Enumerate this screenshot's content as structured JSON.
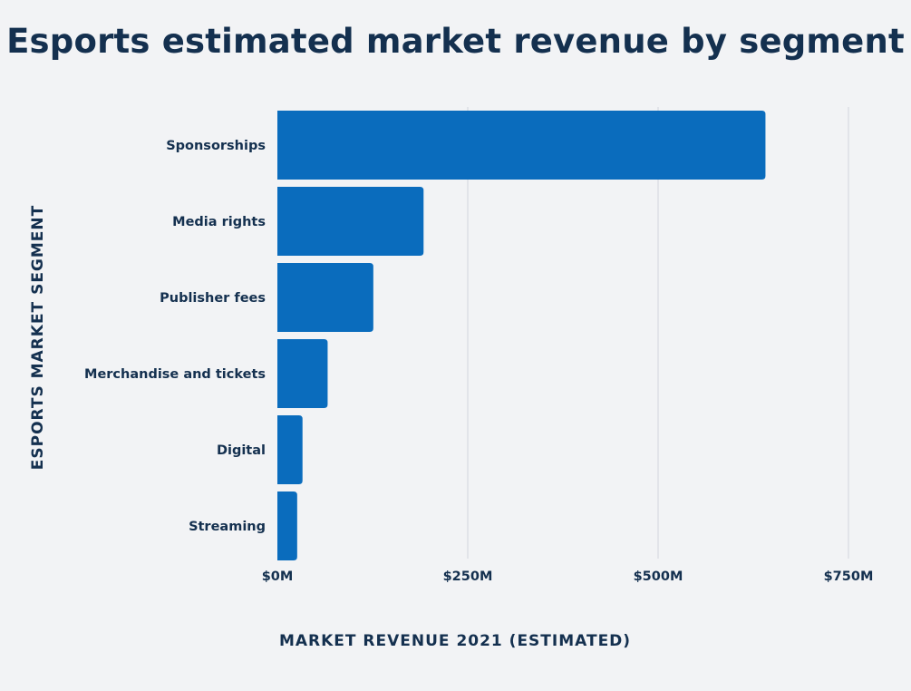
{
  "chart_data": {
    "type": "bar",
    "orientation": "horizontal",
    "title": "Esports estimated market revenue by segment",
    "xlabel": "MARKET REVENUE 2021 (ESTIMATED)",
    "ylabel": "ESPORTS MARKET SEGMENT",
    "categories": [
      "Sponsorships",
      "Media rights",
      "Publisher fees",
      "Merchandise and tickets",
      "Digital",
      "Streaming"
    ],
    "values": [
      641,
      192,
      126,
      66,
      33,
      26
    ],
    "unit": "$M",
    "xlim": [
      0,
      750
    ],
    "xticks": [
      0,
      250,
      500,
      750
    ],
    "xtick_labels": [
      "$0M",
      "$250M",
      "$500M",
      "$750M"
    ],
    "grid": true,
    "bar_color": "#0a6cbd",
    "grid_color": "#dde0e5",
    "text_color": "#14304f",
    "background": "#f2f3f5"
  }
}
